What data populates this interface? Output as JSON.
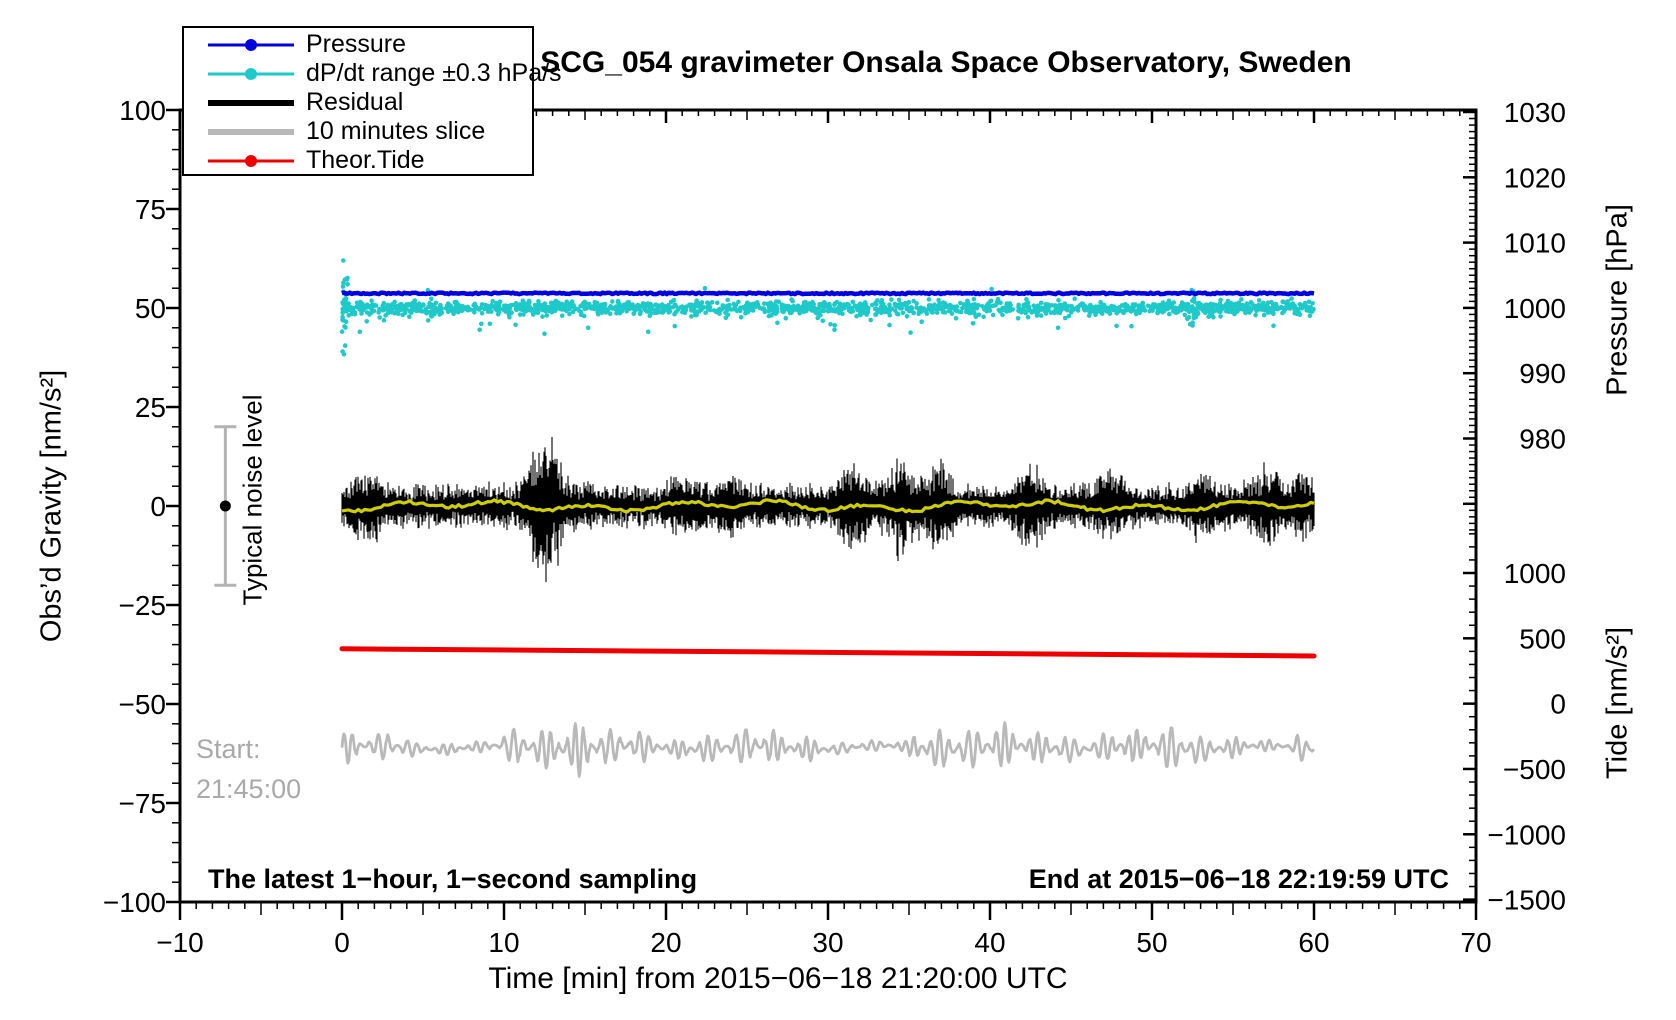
{
  "title": "SCG_054 gravimeter Onsala Space Observatory, Sweden",
  "legend": {
    "items": [
      {
        "label": "Pressure",
        "color": "#0000e0",
        "style": "line-dot"
      },
      {
        "label": "dP/dt range ±0.3 hPa/s",
        "color": "#1fc9c9",
        "style": "line-dot"
      },
      {
        "label": "Residual",
        "color": "#000000",
        "style": "thick-line"
      },
      {
        "label": "10 minutes slice",
        "color": "#b9b9b9",
        "style": "thick-line"
      },
      {
        "label": "Theor.Tide",
        "color": "#ee0000",
        "style": "line-dot"
      }
    ]
  },
  "annotations": {
    "noise_bar_label": "Typical noise level",
    "start_label_line1": "Start:",
    "start_label_line2": "21:45:00",
    "sampling_note": "The latest 1−hour, 1−second sampling",
    "end_note": "End at 2015−06−18 22:19:59 UTC"
  },
  "axes": {
    "x": {
      "label": "Time [min] from 2015−06−18 21:20:00 UTC",
      "min": -10,
      "max": 70,
      "major_ticks": [
        -10,
        0,
        10,
        20,
        30,
        40,
        50,
        60,
        70
      ],
      "medium_step": 5,
      "minor_step": 1
    },
    "y_left": {
      "label": "Obs’d Gravity [nm/s²]",
      "min": -100,
      "max": 100,
      "major_ticks": [
        100,
        75,
        50,
        25,
        0,
        -25,
        -50,
        -75,
        -100
      ],
      "minor_step": 5
    },
    "y_right_pressure": {
      "label": "Pressure [hPa]",
      "min": 966,
      "max": 1030,
      "major_ticks": [
        1030,
        1020,
        1010,
        1000,
        990,
        980
      ],
      "minor_step": 1
    },
    "y_right_tide": {
      "label": "Tide [nm/s²]",
      "min": -1500,
      "max": 1300,
      "major_ticks": [
        1000,
        500,
        0,
        -500,
        -1000,
        -1500
      ],
      "minor_step": 100
    }
  },
  "chart_data": {
    "type": "line",
    "title": "SCG_054 gravimeter Onsala Space Observatory, Sweden",
    "xlabel": "Time [min] from 2015-06-18 21:20:00 UTC",
    "x_range_min": [
      0,
      60
    ],
    "series": [
      {
        "name": "Pressure",
        "kind": "flat-line",
        "color": "#0000e0",
        "value_hPa": 1002.3,
        "display_level_gravity_units": 53.7,
        "jitter_units": 0.2
      },
      {
        "name": "dP/dt range ±0.3 hPa/s",
        "kind": "scatter-band",
        "color": "#1fc9c9",
        "center_gravity_units": 50,
        "band_halfwidth_units": 1.2,
        "start_cluster": {
          "x_min": 0.35,
          "value_range": [
            38,
            62
          ]
        },
        "mid_cluster": {
          "x_center": 52.6,
          "value_range": [
            43.5,
            57
          ]
        },
        "low_outliers_x": [
          1.1,
          8.5,
          8.6,
          12.5,
          15.2,
          18.9,
          30.4,
          35.1,
          44.2,
          57.5
        ],
        "low_outliers_y": [
          44,
          44.5,
          46,
          43.5,
          45,
          44,
          44.5,
          43.8,
          45,
          45.5
        ],
        "high_outliers_x": [
          5.3,
          22.4,
          40.1
        ],
        "high_outliers_y": [
          54.5,
          55,
          54.8
        ]
      },
      {
        "name": "Residual",
        "kind": "noise-band",
        "color": "#000000",
        "center_gravity_units": 0,
        "typical_amplitude_units": 6,
        "burst_times_min": [
          1.5,
          12.3,
          13.0,
          21.0,
          24.0,
          31.5,
          34.5,
          36.8,
          42.5,
          47.5,
          53.0,
          57.0,
          59.3
        ],
        "burst_extra_units": [
          6,
          11,
          9,
          5,
          4,
          8,
          10,
          8,
          7,
          6,
          5,
          6,
          5
        ]
      },
      {
        "name": "Residual smoothed",
        "kind": "smooth-line",
        "color": "#cdcd00",
        "center_gravity_units": 0,
        "amplitude_units": 1.2
      },
      {
        "name": "Theor.Tide",
        "kind": "trend-line",
        "color": "#ee0000",
        "axis": "tide",
        "start_value": 420,
        "end_value": 365
      },
      {
        "name": "10 minutes slice",
        "kind": "wave",
        "color": "#b9b9b9",
        "center_gravity_units": -61,
        "amplitude_units_range": [
          3,
          10
        ],
        "period_min": 0.55
      }
    ],
    "noise_errorbar": {
      "x_min": -7.2,
      "range_gravity_units": [
        -20,
        20
      ],
      "bar_color": "#b3b3b3",
      "dot_color": "#000000"
    }
  }
}
